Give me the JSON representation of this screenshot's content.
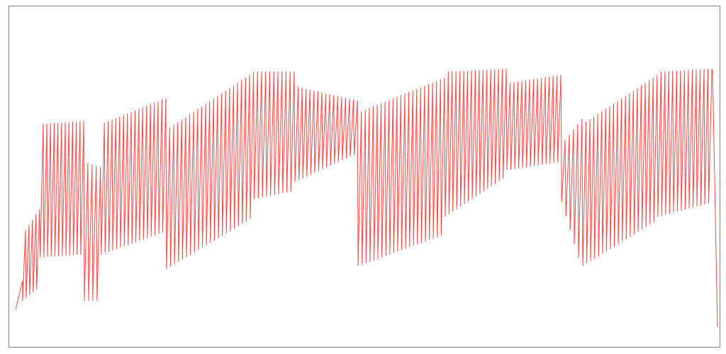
{
  "colors": {
    "line": "#ff4444",
    "frame": "#7f7f7f",
    "background": "#ffffff"
  },
  "chart_data": {
    "type": "line",
    "axes_visible": false,
    "grid": false,
    "legend": "none",
    "xlim": [
      0,
      1
    ],
    "ylim": [
      0,
      1
    ],
    "segments": [
      {
        "phase": "rise",
        "x": [
          0.0,
          0.01
        ],
        "y": [
          0.06,
          0.16
        ]
      },
      {
        "phase": "osc",
        "x_start": 0.01,
        "x_end": 0.035,
        "cycles": 5,
        "low_start": 0.09,
        "low_end": 0.14,
        "high_start": 0.32,
        "high_end": 0.41
      },
      {
        "phase": "osc",
        "x_start": 0.035,
        "x_end": 0.098,
        "cycles": 12,
        "low_start": 0.24,
        "low_end": 0.25,
        "high_start": 0.7,
        "high_end": 0.71
      },
      {
        "phase": "osc",
        "x_start": 0.098,
        "x_end": 0.122,
        "cycles": 4,
        "low_start": 0.09,
        "low_end": 0.09,
        "high_start": 0.57,
        "high_end": 0.55
      },
      {
        "phase": "osc",
        "x_start": 0.122,
        "x_end": 0.215,
        "cycles": 17,
        "low_start": 0.25,
        "low_end": 0.33,
        "high_start": 0.7,
        "high_end": 0.79
      },
      {
        "phase": "osc",
        "x_start": 0.215,
        "x_end": 0.34,
        "cycles": 22,
        "low_start": 0.2,
        "low_end": 0.38,
        "high_start": 0.68,
        "high_end": 0.88
      },
      {
        "phase": "osc",
        "x_start": 0.34,
        "x_end": 0.398,
        "cycles": 10,
        "low_start": 0.44,
        "low_end": 0.47,
        "high_start": 0.88,
        "high_end": 0.88
      },
      {
        "phase": "osc",
        "x_start": 0.398,
        "x_end": 0.488,
        "cycles": 16,
        "low_start": 0.5,
        "low_end": 0.6,
        "high_start": 0.83,
        "high_end": 0.78
      },
      {
        "phase": "osc",
        "x_start": 0.488,
        "x_end": 0.612,
        "cycles": 22,
        "low_start": 0.21,
        "low_end": 0.32,
        "high_start": 0.74,
        "high_end": 0.86
      },
      {
        "phase": "osc",
        "x_start": 0.612,
        "x_end": 0.7,
        "cycles": 16,
        "low_start": 0.38,
        "low_end": 0.52,
        "high_start": 0.88,
        "high_end": 0.89
      },
      {
        "phase": "osc",
        "x_start": 0.7,
        "x_end": 0.778,
        "cycles": 14,
        "low_start": 0.54,
        "low_end": 0.57,
        "high_start": 0.84,
        "high_end": 0.87
      },
      {
        "phase": "osc",
        "x_start": 0.778,
        "x_end": 0.808,
        "cycles": 5,
        "low_start": 0.43,
        "low_end": 0.19,
        "high_start": 0.63,
        "high_end": 0.72
      },
      {
        "phase": "osc",
        "x_start": 0.808,
        "x_end": 0.915,
        "cycles": 19,
        "low_start": 0.21,
        "low_end": 0.37,
        "high_start": 0.7,
        "high_end": 0.87
      },
      {
        "phase": "osc",
        "x_start": 0.915,
        "x_end": 0.993,
        "cycles": 14,
        "low_start": 0.38,
        "low_end": 0.43,
        "high_start": 0.88,
        "high_end": 0.89
      },
      {
        "phase": "drop",
        "x": [
          0.993,
          1.0
        ],
        "y": [
          0.88,
          0.0
        ]
      }
    ]
  }
}
